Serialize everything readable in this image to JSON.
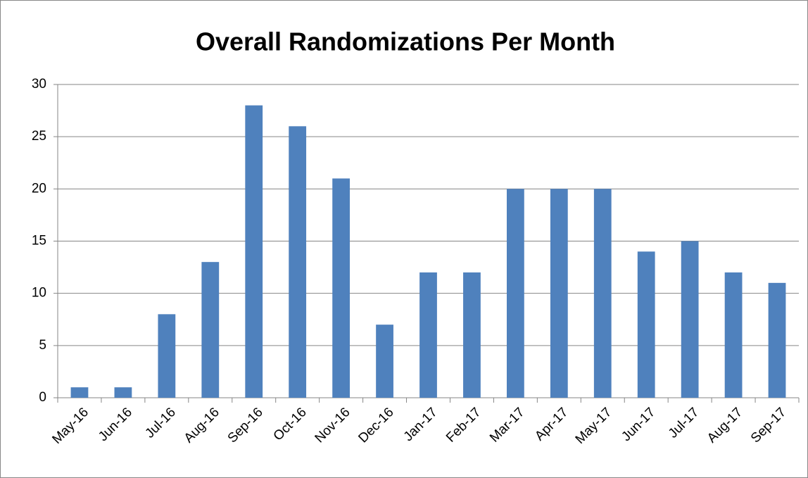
{
  "chart_data": {
    "type": "bar",
    "title": "Overall Randomizations Per Month",
    "categories": [
      "May-16",
      "Jun-16",
      "Jul-16",
      "Aug-16",
      "Sep-16",
      "Oct-16",
      "Nov-16",
      "Dec-16",
      "Jan-17",
      "Feb-17",
      "Mar-17",
      "Apr-17",
      "May-17",
      "Jun-17",
      "Jul-17",
      "Aug-17",
      "Sep-17"
    ],
    "values": [
      1,
      1,
      8,
      13,
      28,
      26,
      21,
      7,
      12,
      12,
      20,
      20,
      20,
      14,
      15,
      12,
      11
    ],
    "color": "#4f81bd",
    "ylim": [
      0,
      30
    ],
    "yticks": [
      0,
      5,
      10,
      15,
      20,
      25,
      30
    ],
    "grid": true
  }
}
